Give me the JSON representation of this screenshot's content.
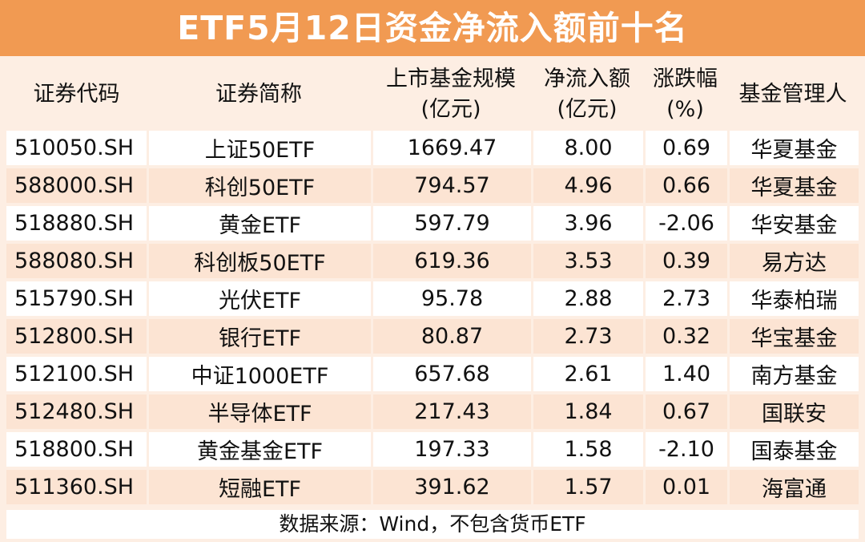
{
  "title": "ETF5月12日资金净流入额前十名",
  "headers": {
    "code": "证券代码",
    "name": "证券简称",
    "scale_l1": "上市基金规模",
    "scale_l2": "(亿元)",
    "inflow_l1": "净流入额",
    "inflow_l2": "(亿元)",
    "change_l1": "涨跌幅",
    "change_l2": "(%)",
    "manager": "基金管理人"
  },
  "rows": [
    {
      "code": "510050.SH",
      "name": "上证50ETF",
      "scale": "1669.47",
      "inflow": "8.00",
      "change": "0.69",
      "manager": "华夏基金"
    },
    {
      "code": "588000.SH",
      "name": "科创50ETF",
      "scale": "794.57",
      "inflow": "4.96",
      "change": "0.66",
      "manager": "华夏基金"
    },
    {
      "code": "518880.SH",
      "name": "黄金ETF",
      "scale": "597.79",
      "inflow": "3.96",
      "change": "-2.06",
      "manager": "华安基金"
    },
    {
      "code": "588080.SH",
      "name": "科创板50ETF",
      "scale": "619.36",
      "inflow": "3.53",
      "change": "0.39",
      "manager": "易方达"
    },
    {
      "code": "515790.SH",
      "name": "光伏ETF",
      "scale": "95.78",
      "inflow": "2.88",
      "change": "2.73",
      "manager": "华泰柏瑞"
    },
    {
      "code": "512800.SH",
      "name": "银行ETF",
      "scale": "80.87",
      "inflow": "2.73",
      "change": "0.32",
      "manager": "华宝基金"
    },
    {
      "code": "512100.SH",
      "name": "中证1000ETF",
      "scale": "657.68",
      "inflow": "2.61",
      "change": "1.40",
      "manager": "南方基金"
    },
    {
      "code": "512480.SH",
      "name": "半导体ETF",
      "scale": "217.43",
      "inflow": "1.84",
      "change": "0.67",
      "manager": "国联安"
    },
    {
      "code": "518800.SH",
      "name": "黄金基金ETF",
      "scale": "197.33",
      "inflow": "1.58",
      "change": "-2.10",
      "manager": "国泰基金"
    },
    {
      "code": "511360.SH",
      "name": "短融ETF",
      "scale": "391.62",
      "inflow": "1.57",
      "change": "0.01",
      "manager": "海富通"
    }
  ],
  "footer": "数据来源：Wind，不包含货币ETF",
  "colors": {
    "title_bg": "#f19a52",
    "page_bg": "#fdeee3",
    "row_white": "#ffffff",
    "row_peach": "#fce4d3"
  }
}
